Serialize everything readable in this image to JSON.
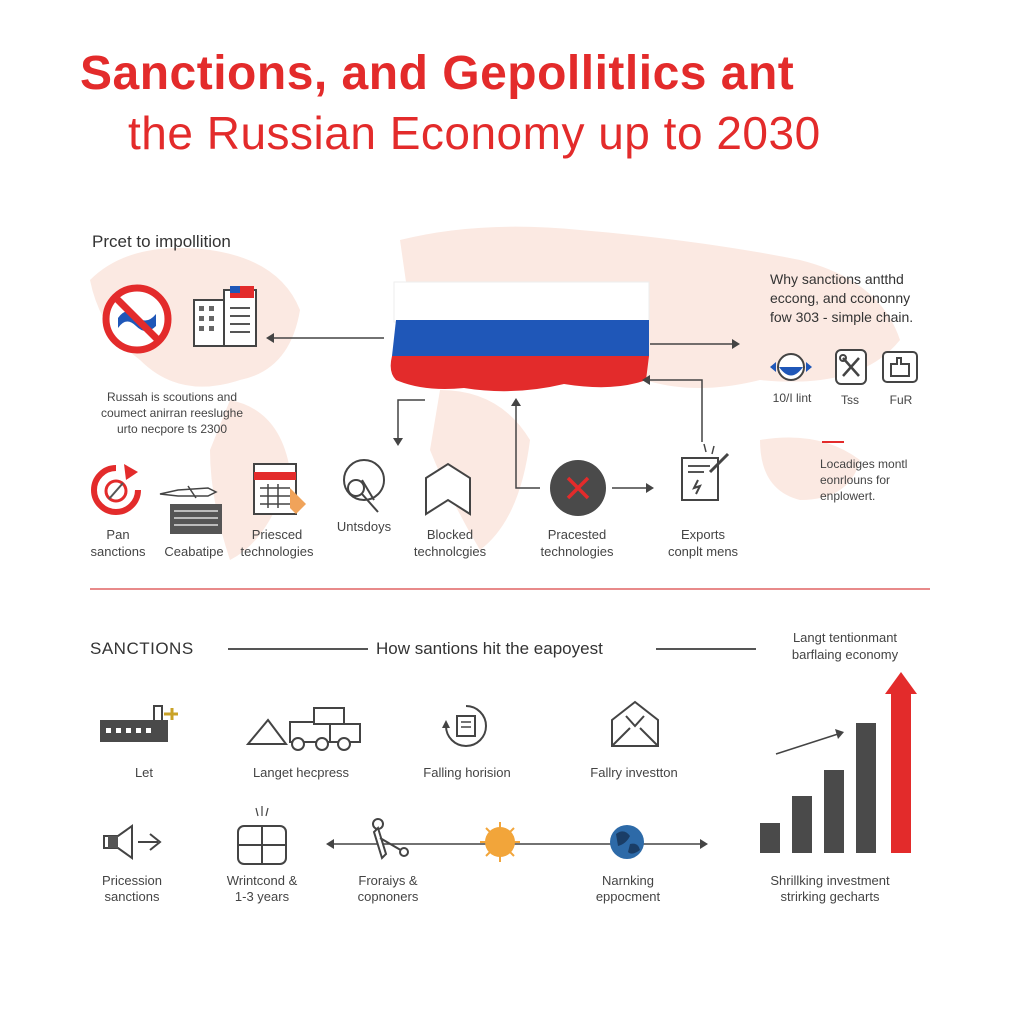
{
  "header": {
    "title_line1": "Sanctions, and Gepollitlics ant",
    "title_line2": "the Russian Economy up to 2030"
  },
  "top_section": {
    "left_heading": "Prcet to impollition",
    "left_caption": {
      "line1": "Russah is scoutions and",
      "line2": "coumect anirran reeslughe",
      "line3": "urto necpore ts 2300"
    },
    "right_heading": {
      "line1": "Why sanctions antthd",
      "line2": "eccong, and ccononny",
      "line3": "fow 303 - simple chain."
    },
    "right_icon_labels": [
      "10/I lint",
      "Tss",
      "FuR"
    ],
    "right_note": {
      "line1": "Locadiges montl",
      "line2": "eonrlouns for",
      "line3": "enplowert."
    },
    "flow_labels": [
      {
        "line1": "Pan",
        "line2": "sanctions"
      },
      {
        "line1": "",
        "line2": "Ceabatipe"
      },
      {
        "line1": "Priesced",
        "line2": "technologies"
      },
      {
        "line1": "Untsdoys",
        "line2": ""
      },
      {
        "line1": "Blocked",
        "line2": "technolcgies"
      },
      {
        "line1": "Pracested",
        "line2": "technologies"
      },
      {
        "line1": "Exports",
        "line2": "conplt mens"
      }
    ]
  },
  "bottom_section": {
    "sanctions_label": "SANCTIONS",
    "center_heading": "How santions hit the eapoyest",
    "right_heading": {
      "line1": "Langt tentionmant",
      "line2": "barflaing economy"
    },
    "row1_labels": [
      "Let",
      "Langet hecpress",
      "Falling horision",
      "Fallry investton"
    ],
    "row2_labels": [
      {
        "line1": "Pricession",
        "line2": "sanctions"
      },
      {
        "line1": "Wrintcond &",
        "line2": "1-3 years"
      },
      {
        "line1": "Froraiys &",
        "line2": "copnoners"
      },
      {
        "line1": "Narnking",
        "line2": "eppocment"
      }
    ],
    "chart_caption": {
      "line1": "Shrillking investment",
      "line2": "strirking gecharts"
    }
  },
  "colors": {
    "accent_red": "#e32b2b",
    "flag_blue": "#1f57b8",
    "dark_grey": "#4a4a4a"
  }
}
